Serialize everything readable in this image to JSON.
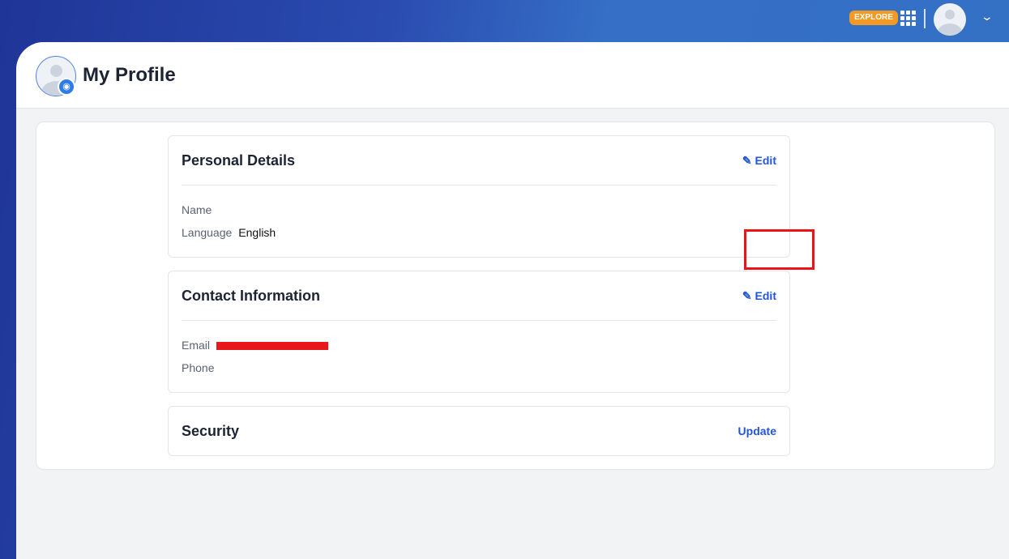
{
  "topbar": {
    "explore_label": "EXPLORE",
    "apps_icon": "grid-icon",
    "user_icon": "avatar-icon",
    "menu_icon": "chevron-down-icon"
  },
  "header": {
    "title": "My Profile",
    "avatar_icon": "camera-icon"
  },
  "sections": [
    {
      "title": "Personal Details",
      "action": "Edit",
      "fields": [
        {
          "label": "Name",
          "value": ""
        },
        {
          "label": "Language",
          "value": "English"
        }
      ]
    },
    {
      "title": "Contact Information",
      "action": "Edit",
      "fields": [
        {
          "label": "Email",
          "value": "[redacted]"
        },
        {
          "label": "Phone",
          "value": ""
        }
      ]
    },
    {
      "title": "Security",
      "action": "Update"
    }
  ],
  "colors": {
    "accent": "#2356d6",
    "explore": "#f39a25",
    "highlight": "#e8161a"
  }
}
